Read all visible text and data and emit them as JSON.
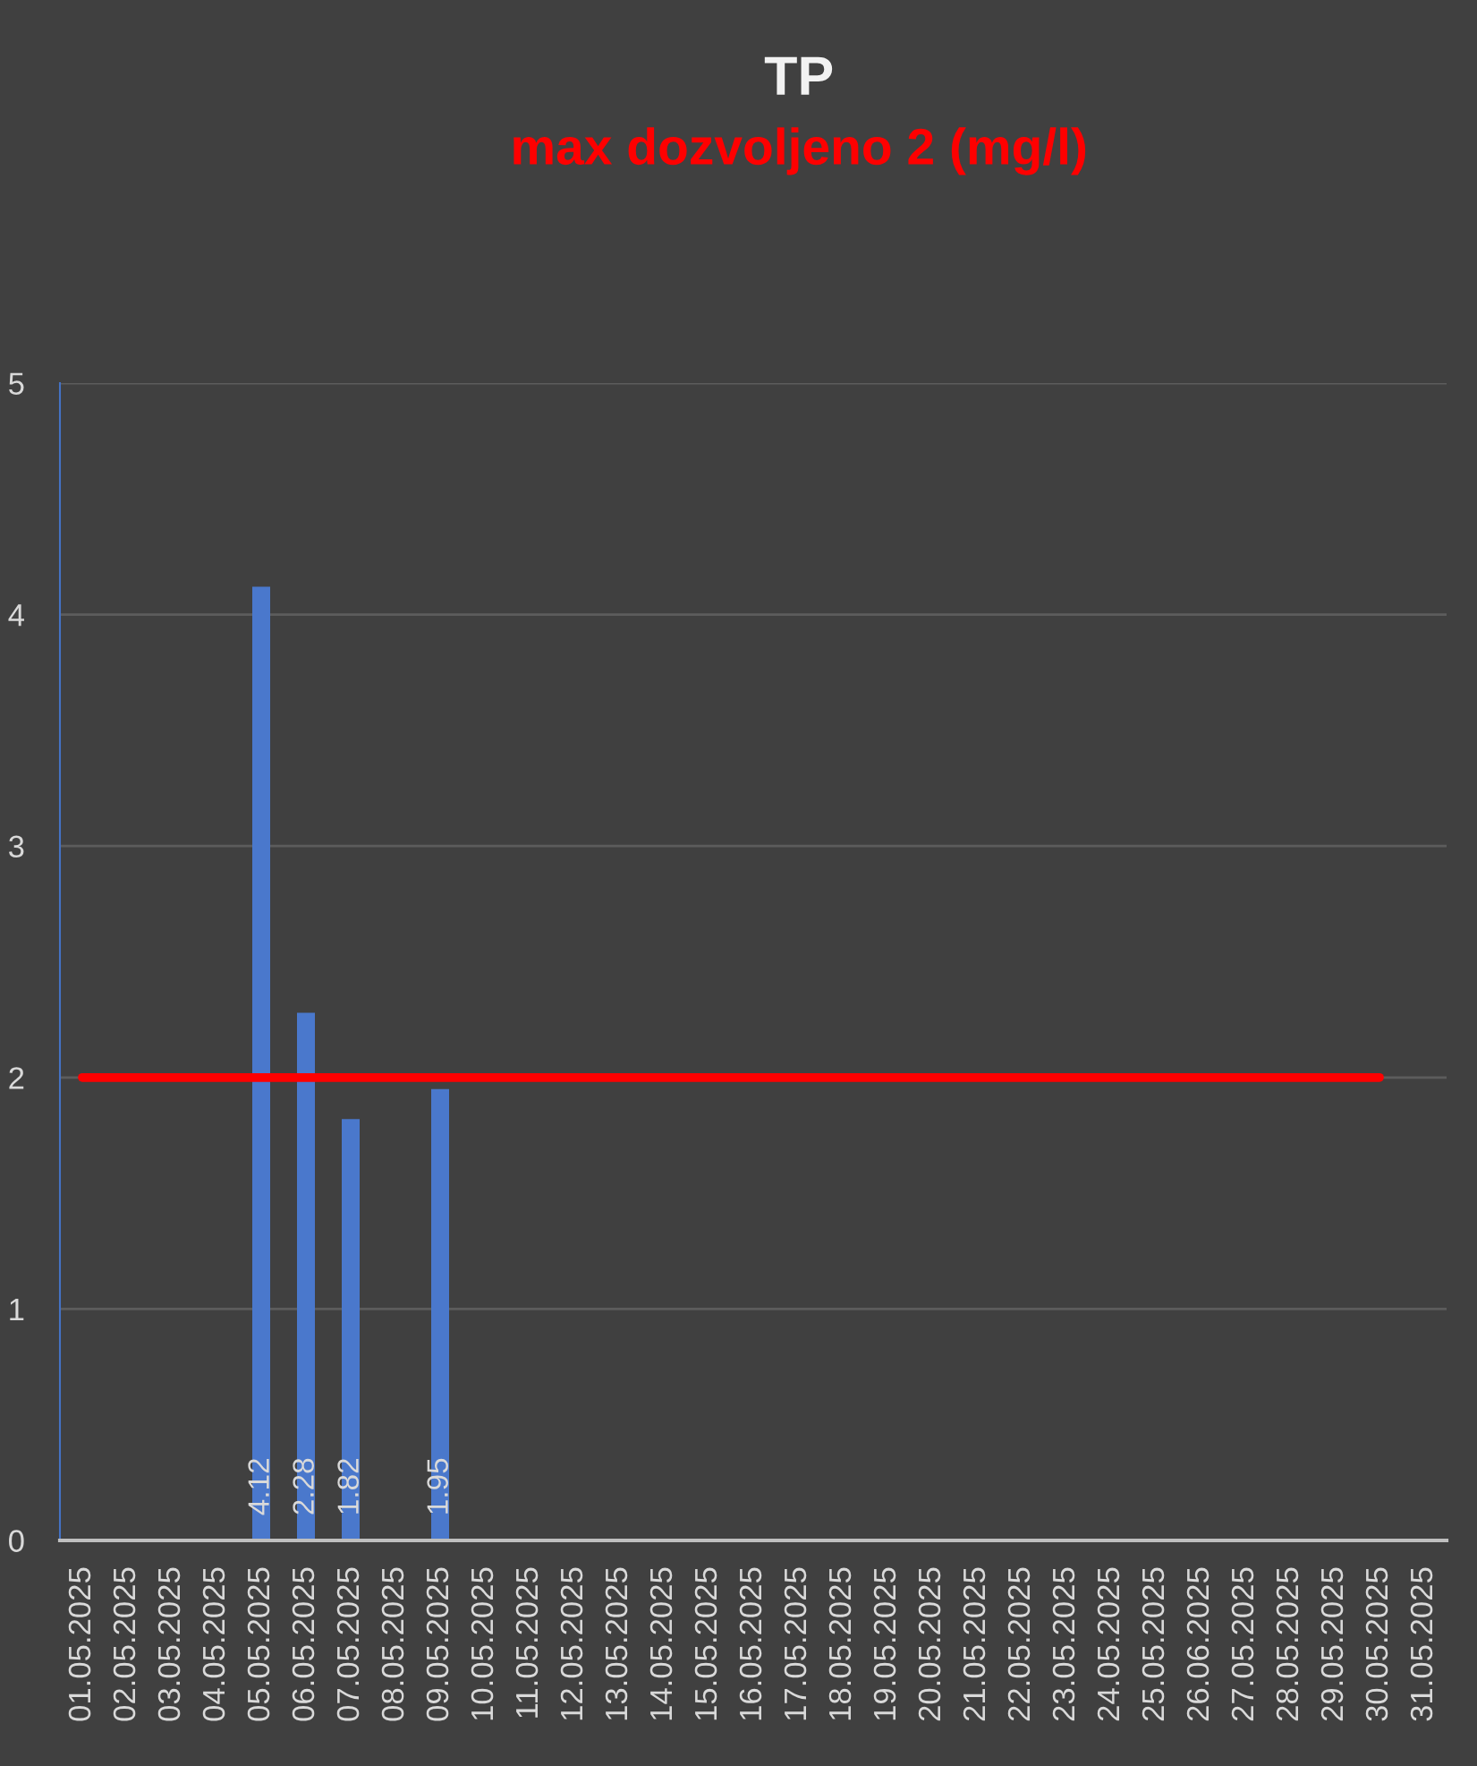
{
  "chart_data": {
    "type": "bar",
    "title": "TP",
    "subtitle": "max dozvoljeno 2 (mg/l)",
    "categories": [
      "01.05.2025",
      "02.05.2025",
      "03.05.2025",
      "04.05.2025",
      "05.05.2025",
      "06.05.2025",
      "07.05.2025",
      "08.05.2025",
      "09.05.2025",
      "10.05.2025",
      "11.05.2025",
      "12.05.2025",
      "13.05.2025",
      "14.05.2025",
      "15.05.2025",
      "16.05.2025",
      "17.05.2025",
      "18.05.2025",
      "19.05.2025",
      "20.05.2025",
      "21.05.2025",
      "22.05.2025",
      "23.05.2025",
      "24.05.2025",
      "25.05.2025",
      "26.06.2025",
      "27.05.2025",
      "28.05.2025",
      "29.05.2025",
      "30.05.2025",
      "31.05.2025"
    ],
    "series": [
      {
        "color": "#4a78cc",
        "values": [
          null,
          null,
          null,
          null,
          4.12,
          2.28,
          1.82,
          null,
          1.95,
          null,
          null,
          null,
          null,
          null,
          null,
          null,
          null,
          null,
          null,
          null,
          null,
          null,
          null,
          null,
          null,
          null,
          null,
          null,
          null,
          null,
          null
        ],
        "value_labels": [
          null,
          null,
          null,
          null,
          "4.12",
          "2.28",
          "1.82",
          null,
          "1.95",
          null,
          null,
          null,
          null,
          null,
          null,
          null,
          null,
          null,
          null,
          null,
          null,
          null,
          null,
          null,
          null,
          null,
          null,
          null,
          null,
          null,
          null
        ]
      },
      {
        "type": "line",
        "color": "#ff0000",
        "values": [
          2,
          2,
          2,
          2,
          2,
          2,
          2,
          2,
          2,
          2,
          2,
          2,
          2,
          2,
          2,
          2,
          2,
          2,
          2,
          2,
          2,
          2,
          2,
          2,
          2,
          2,
          2,
          2,
          2,
          2,
          null
        ]
      }
    ],
    "ylim": [
      0,
      5
    ],
    "yticks": [
      0,
      1,
      2,
      3,
      4,
      5
    ],
    "grid": "y"
  }
}
